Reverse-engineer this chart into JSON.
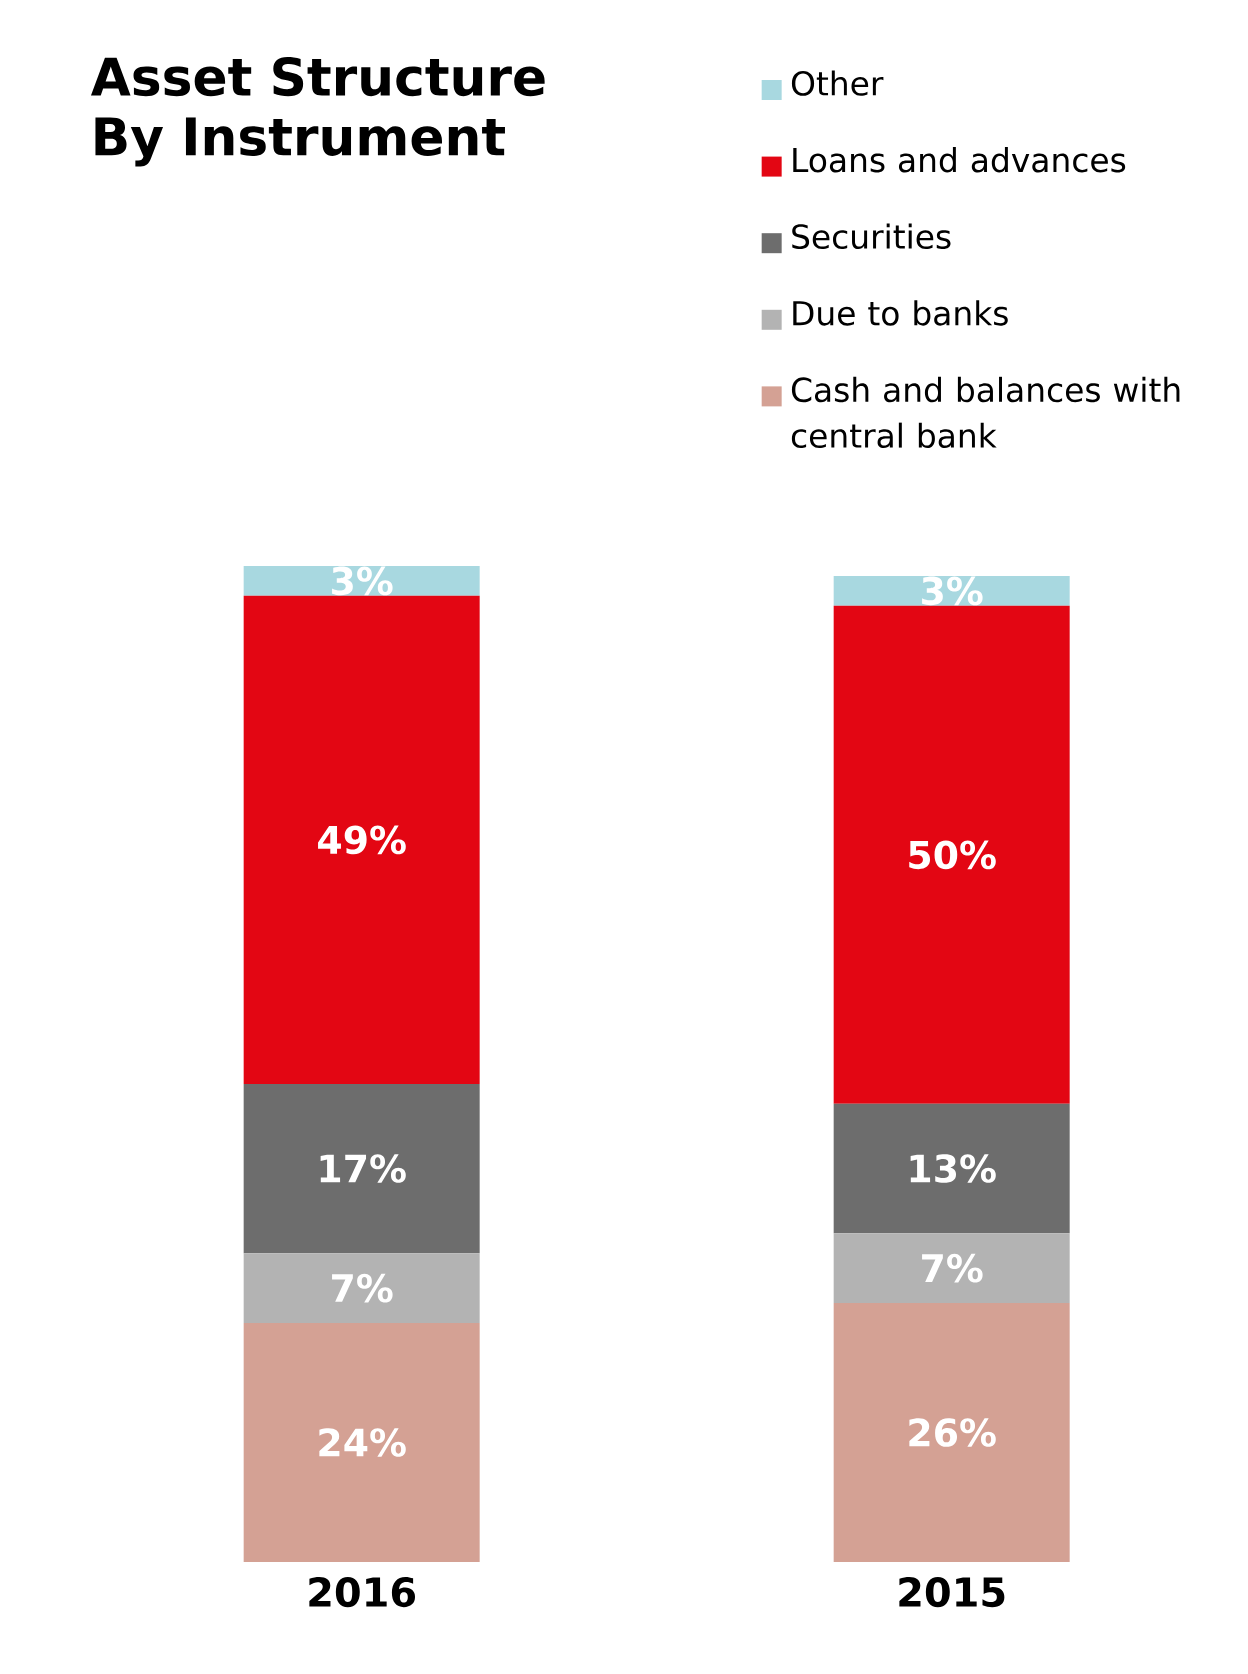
{
  "chart_data": {
    "type": "bar",
    "title": "Asset Structure By Instrument",
    "categories": [
      "2016",
      "2015"
    ],
    "stacked": true,
    "legend": "top right",
    "series": [
      {
        "name": "Cash and balances with central bank",
        "color": "#d4a194",
        "values": [
          24,
          26
        ],
        "value_labels": [
          "24%",
          "26%"
        ]
      },
      {
        "name": "Due to banks",
        "color": "#b3b3b3",
        "values": [
          7,
          7
        ],
        "value_labels": [
          "7%",
          "7%"
        ]
      },
      {
        "name": "Securities",
        "color": "#6d6d6d",
        "values": [
          17,
          13
        ],
        "value_labels": [
          "17%",
          "13%"
        ]
      },
      {
        "name": "Loans and advances",
        "color": "#e30613",
        "values": [
          49,
          50
        ],
        "value_labels": [
          "49%",
          "50%"
        ]
      },
      {
        "name": "Other",
        "color": "#a8d8e0",
        "values": [
          3,
          3
        ],
        "value_labels": [
          "3%",
          "3%"
        ]
      }
    ]
  }
}
